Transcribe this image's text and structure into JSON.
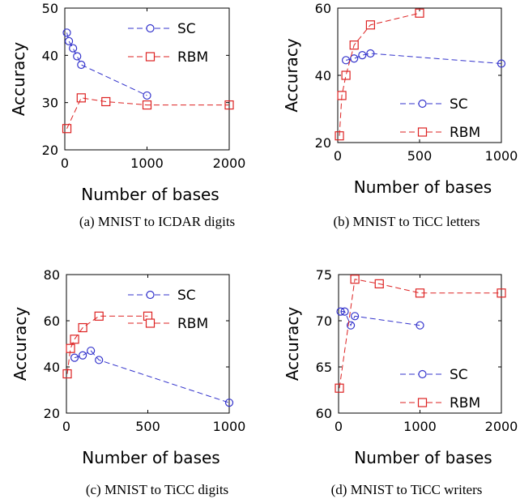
{
  "chart_data": [
    {
      "type": "line",
      "caption": "(a) MNIST to ICDAR digits",
      "xlabel": "Number of bases",
      "ylabel": "Accuracy",
      "xlim": [
        0,
        2000
      ],
      "ylim": [
        20,
        50
      ],
      "xticks": [
        0,
        1000,
        2000
      ],
      "yticks": [
        20,
        30,
        40,
        50
      ],
      "legend_position": "top-right",
      "series": [
        {
          "name": "SC",
          "color": "#3333cc",
          "marker": "circle",
          "x": [
            25,
            50,
            100,
            150,
            200,
            1000
          ],
          "y": [
            44.8,
            43.0,
            41.5,
            39.8,
            38.0,
            31.5
          ]
        },
        {
          "name": "RBM",
          "color": "#dd2222",
          "marker": "square",
          "x": [
            25,
            200,
            500,
            1000,
            2000
          ],
          "y": [
            24.5,
            31.0,
            30.2,
            29.5,
            29.5
          ]
        }
      ]
    },
    {
      "type": "line",
      "caption": "(b) MNIST to TiCC letters",
      "xlabel": "Number of bases",
      "ylabel": "Accuracy",
      "xlim": [
        0,
        1000
      ],
      "ylim": [
        20,
        60
      ],
      "xticks": [
        0,
        500,
        1000
      ],
      "yticks": [
        20,
        40,
        60
      ],
      "legend_position": "bottom-right",
      "series": [
        {
          "name": "SC",
          "color": "#3333cc",
          "marker": "circle",
          "x": [
            50,
            100,
            150,
            200,
            1000
          ],
          "y": [
            44.5,
            45.0,
            46.0,
            46.5,
            43.5
          ]
        },
        {
          "name": "RBM",
          "color": "#dd2222",
          "marker": "square",
          "x": [
            10,
            25,
            50,
            100,
            200,
            500
          ],
          "y": [
            22.0,
            34.0,
            40.0,
            49.0,
            55.0,
            58.5
          ]
        }
      ]
    },
    {
      "type": "line",
      "caption": "(c) MNIST to TiCC digits",
      "xlabel": "Number of bases",
      "ylabel": "Accuracy",
      "xlim": [
        0,
        1000
      ],
      "ylim": [
        20,
        80
      ],
      "xticks": [
        0,
        500,
        1000
      ],
      "yticks": [
        20,
        40,
        60,
        80
      ],
      "legend_position": "top-right",
      "series": [
        {
          "name": "SC",
          "color": "#3333cc",
          "marker": "circle",
          "x": [
            50,
            100,
            150,
            200,
            1000
          ],
          "y": [
            44.0,
            45.0,
            47.0,
            43.0,
            24.5
          ]
        },
        {
          "name": "RBM",
          "color": "#dd2222",
          "marker": "square",
          "x": [
            5,
            25,
            50,
            100,
            200,
            500
          ],
          "y": [
            37.0,
            48.0,
            52.0,
            57.0,
            62.0,
            62.0
          ]
        }
      ]
    },
    {
      "type": "line",
      "caption": "(d) MNIST to TiCC writers",
      "xlabel": "Number of bases",
      "ylabel": "Accuracy",
      "xlim": [
        0,
        2000
      ],
      "ylim": [
        60,
        75
      ],
      "xticks": [
        0,
        1000,
        2000
      ],
      "yticks": [
        60,
        65,
        70,
        75
      ],
      "legend_position": "bottom-right",
      "series": [
        {
          "name": "SC",
          "color": "#3333cc",
          "marker": "circle",
          "x": [
            25,
            75,
            150,
            200,
            1000
          ],
          "y": [
            71.0,
            71.0,
            69.5,
            70.5,
            69.5
          ]
        },
        {
          "name": "RBM",
          "color": "#dd2222",
          "marker": "square",
          "x": [
            10,
            200,
            500,
            1000,
            2000
          ],
          "y": [
            62.7,
            74.5,
            74.0,
            73.0,
            73.0
          ]
        }
      ]
    }
  ]
}
